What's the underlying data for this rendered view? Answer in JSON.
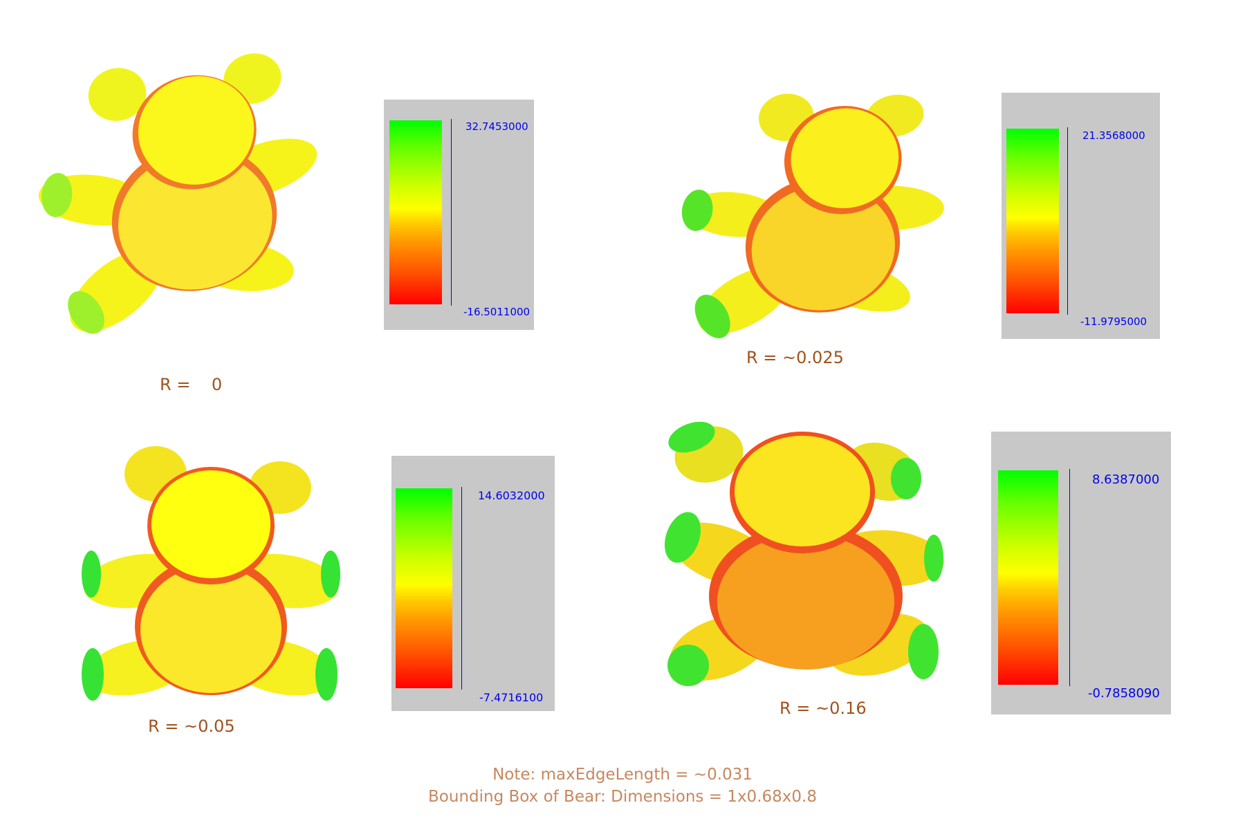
{
  "panels": [
    {
      "r_label": "R =    0",
      "legend": {
        "max": "32.7453000",
        "min": "-16.5011000"
      },
      "colors": {
        "head": "#fbf71c",
        "body": "#fbe632",
        "limbs": "#f6f31a",
        "ears": "#f0f41e",
        "ends": "#9ef02c",
        "seams": "#f07a2a"
      }
    },
    {
      "r_label": "R = ~0.025",
      "legend": {
        "max": "21.3568000",
        "min": "-11.9795000"
      },
      "colors": {
        "head": "#fbef1e",
        "body": "#f8d528",
        "limbs": "#f4ee1c",
        "ears": "#f2ea20",
        "ends": "#56e428",
        "seams": "#f06a22"
      }
    },
    {
      "r_label": "R = ~0.05",
      "legend": {
        "max": "14.6032000",
        "min": "-7.4716100"
      },
      "colors": {
        "head": "#ffff10",
        "body": "#fbe82a",
        "limbs": "#f6f020",
        "ears": "#f4e420",
        "ends": "#36e234",
        "seams": "#f05a20"
      }
    },
    {
      "r_label": "R = ~0.16",
      "legend": {
        "max": "8.6387000",
        "min": "-0.7858090"
      },
      "colors": {
        "head": "#fbe420",
        "body": "#f7a020",
        "limbs": "#f5d81e",
        "ears": "#e8e020",
        "ends": "#40e430",
        "seams": "#f05020"
      }
    }
  ],
  "note": {
    "line1": "Note: maxEdgeLength = ~0.031",
    "line2": "Bounding Box of Bear: Dimensions = 1x0.68x0.8"
  }
}
